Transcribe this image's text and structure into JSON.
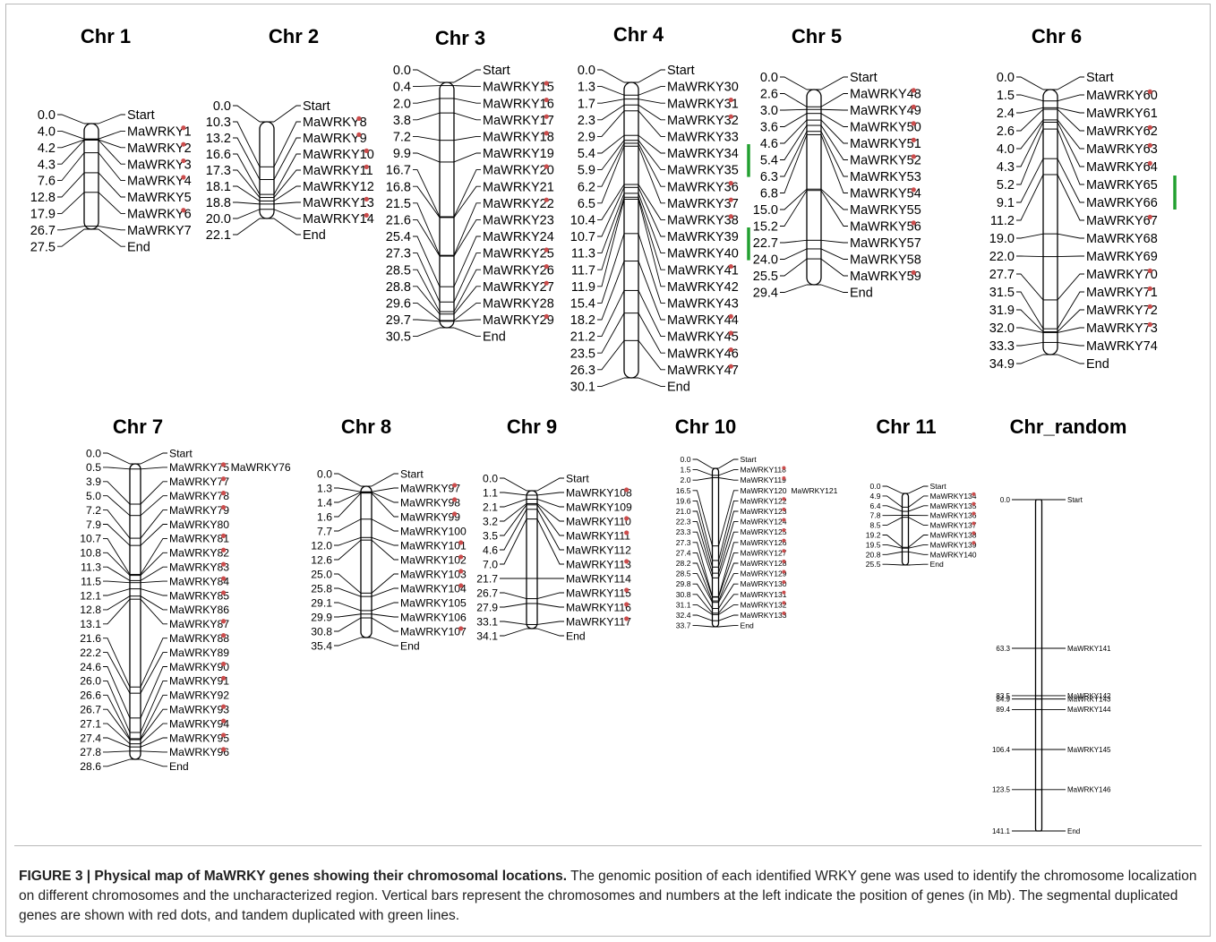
{
  "figure": {
    "caption_bold": "FIGURE 3 | Physical map of MaWRKY genes showing their chromosomal locations.",
    "caption_text": " The genomic position of each identified WRKY gene was used to identify the chromosome localization on different chromosomes and the uncharacterized region. Vertical bars represent the chromosomes and numbers at the left indicate the position of genes (in Mb). The segmental duplicated genes are shown with red dots, and tandem duplicated with green lines."
  },
  "colors": {
    "segmental_dot": "#cc4d4d",
    "tandem_line": "#22a030",
    "ink": "#000000"
  },
  "chromosomes": [
    {
      "name": "Chr 1",
      "markers": [
        {
          "pos": "0.0",
          "gene": "Start"
        },
        {
          "pos": "4.0",
          "gene": "MaWRKY1",
          "dot": true
        },
        {
          "pos": "4.2",
          "gene": "MaWRKY2",
          "dot": true
        },
        {
          "pos": "4.3",
          "gene": "MaWRKY3",
          "dot": true
        },
        {
          "pos": "7.6",
          "gene": "MaWRKY4",
          "dot": true
        },
        {
          "pos": "12.8",
          "gene": "MaWRKY5"
        },
        {
          "pos": "17.9",
          "gene": "MaWRKY6",
          "dot": true
        },
        {
          "pos": "26.7",
          "gene": "MaWRKY7"
        },
        {
          "pos": "27.5",
          "gene": "End"
        }
      ]
    },
    {
      "name": "Chr 2",
      "markers": [
        {
          "pos": "0.0",
          "gene": "Start"
        },
        {
          "pos": "10.3",
          "gene": "MaWRKY8",
          "dot": true
        },
        {
          "pos": "13.2",
          "gene": "MaWRKY9",
          "dot": true
        },
        {
          "pos": "16.6",
          "gene": "MaWRKY10",
          "dot": true
        },
        {
          "pos": "17.3",
          "gene": "MaWRKY11",
          "dot": true
        },
        {
          "pos": "18.1",
          "gene": "MaWRKY12"
        },
        {
          "pos": "18.8",
          "gene": "MaWRKY13",
          "dot": true
        },
        {
          "pos": "20.0",
          "gene": "MaWRKY14",
          "dot": true
        },
        {
          "pos": "22.1",
          "gene": "End"
        }
      ]
    },
    {
      "name": "Chr 3",
      "markers": [
        {
          "pos": "0.0",
          "gene": "Start"
        },
        {
          "pos": "0.4",
          "gene": "MaWRKY15",
          "dot": true
        },
        {
          "pos": "2.0",
          "gene": "MaWRKY16",
          "dot": true
        },
        {
          "pos": "3.8",
          "gene": "MaWRKY17",
          "dot": true
        },
        {
          "pos": "7.2",
          "gene": "MaWRKY18",
          "dot": true
        },
        {
          "pos": "9.9",
          "gene": "MaWRKY19"
        },
        {
          "pos": "16.7",
          "gene": "MaWRKY20",
          "dot": true
        },
        {
          "pos": "16.8",
          "gene": "MaWRKY21"
        },
        {
          "pos": "21.5",
          "gene": "MaWRKY22",
          "dot": true
        },
        {
          "pos": "21.6",
          "gene": "MaWRKY23"
        },
        {
          "pos": "25.4",
          "gene": "MaWRKY24"
        },
        {
          "pos": "27.3",
          "gene": "MaWRKY25",
          "dot": true
        },
        {
          "pos": "28.5",
          "gene": "MaWRKY26",
          "dot": true
        },
        {
          "pos": "28.8",
          "gene": "MaWRKY27",
          "dot": true
        },
        {
          "pos": "29.6",
          "gene": "MaWRKY28"
        },
        {
          "pos": "29.7",
          "gene": "MaWRKY29",
          "dot": true
        },
        {
          "pos": "30.5",
          "gene": "End"
        }
      ]
    },
    {
      "name": "Chr 4",
      "markers": [
        {
          "pos": "0.0",
          "gene": "Start"
        },
        {
          "pos": "1.3",
          "gene": "MaWRKY30"
        },
        {
          "pos": "1.7",
          "gene": "MaWRKY31",
          "dot": true
        },
        {
          "pos": "2.3",
          "gene": "MaWRKY32",
          "dot": true
        },
        {
          "pos": "2.9",
          "gene": "MaWRKY33"
        },
        {
          "pos": "5.4",
          "gene": "MaWRKY34"
        },
        {
          "pos": "5.9",
          "gene": "MaWRKY35"
        },
        {
          "pos": "6.2",
          "gene": "MaWRKY36",
          "dot": true
        },
        {
          "pos": "6.5",
          "gene": "MaWRKY37",
          "dot": true
        },
        {
          "pos": "10.4",
          "gene": "MaWRKY38",
          "dot": true
        },
        {
          "pos": "10.7",
          "gene": "MaWRKY39"
        },
        {
          "pos": "11.3",
          "gene": "MaWRKY40"
        },
        {
          "pos": "11.7",
          "gene": "MaWRKY41",
          "dot": true
        },
        {
          "pos": "11.9",
          "gene": "MaWRKY42"
        },
        {
          "pos": "15.4",
          "gene": "MaWRKY43"
        },
        {
          "pos": "18.2",
          "gene": "MaWRKY44",
          "dot": true
        },
        {
          "pos": "21.2",
          "gene": "MaWRKY45",
          "dot": true
        },
        {
          "pos": "23.5",
          "gene": "MaWRKY46",
          "dot": true
        },
        {
          "pos": "26.3",
          "gene": "MaWRKY47",
          "dot": true
        },
        {
          "pos": "30.1",
          "gene": "End"
        }
      ]
    },
    {
      "name": "Chr 5",
      "markers": [
        {
          "pos": "0.0",
          "gene": "Start"
        },
        {
          "pos": "2.6",
          "gene": "MaWRKY48",
          "dot": true
        },
        {
          "pos": "3.0",
          "gene": "MaWRKY49",
          "dot": true
        },
        {
          "pos": "3.6",
          "gene": "MaWRKY50",
          "dot": true
        },
        {
          "pos": "4.6",
          "gene": "MaWRKY51",
          "dot": true
        },
        {
          "pos": "5.4",
          "gene": "MaWRKY52",
          "dot": true
        },
        {
          "pos": "6.3",
          "gene": "MaWRKY53"
        },
        {
          "pos": "6.8",
          "gene": "MaWRKY54",
          "dot": true
        },
        {
          "pos": "15.0",
          "gene": "MaWRKY55"
        },
        {
          "pos": "15.2",
          "gene": "MaWRKY56",
          "dot": true
        },
        {
          "pos": "22.7",
          "gene": "MaWRKY57"
        },
        {
          "pos": "24.0",
          "gene": "MaWRKY58"
        },
        {
          "pos": "25.5",
          "gene": "MaWRKY59",
          "dot": true
        },
        {
          "pos": "29.4",
          "gene": "End"
        }
      ]
    },
    {
      "name": "Chr 6",
      "markers": [
        {
          "pos": "0.0",
          "gene": "Start"
        },
        {
          "pos": "1.5",
          "gene": "MaWRKY60",
          "dot": true
        },
        {
          "pos": "2.4",
          "gene": "MaWRKY61"
        },
        {
          "pos": "2.6",
          "gene": "MaWRKY62",
          "dot": true
        },
        {
          "pos": "4.0",
          "gene": "MaWRKY63",
          "dot": true
        },
        {
          "pos": "4.3",
          "gene": "MaWRKY64",
          "dot": true
        },
        {
          "pos": "5.2",
          "gene": "MaWRKY65"
        },
        {
          "pos": "9.1",
          "gene": "MaWRKY66"
        },
        {
          "pos": "11.2",
          "gene": "MaWRKY67",
          "dot": true
        },
        {
          "pos": "19.0",
          "gene": "MaWRKY68"
        },
        {
          "pos": "22.0",
          "gene": "MaWRKY69"
        },
        {
          "pos": "27.7",
          "gene": "MaWRKY70",
          "dot": true
        },
        {
          "pos": "31.5",
          "gene": "MaWRKY71",
          "dot": true
        },
        {
          "pos": "31.9",
          "gene": "MaWRKY72",
          "dot": true
        },
        {
          "pos": "32.0",
          "gene": "MaWRKY73",
          "dot": true
        },
        {
          "pos": "33.3",
          "gene": "MaWRKY74"
        },
        {
          "pos": "34.9",
          "gene": "End"
        }
      ]
    },
    {
      "name": "Chr 7",
      "extra": {
        "gene": "MaWRKY76",
        "row": 1
      },
      "markers": [
        {
          "pos": "0.0",
          "gene": "Start"
        },
        {
          "pos": "0.5",
          "gene": "MaWRKY75",
          "dot": true
        },
        {
          "pos": "3.9",
          "gene": "MaWRKY77",
          "dot": true
        },
        {
          "pos": "5.0",
          "gene": "MaWRKY78",
          "dot": true
        },
        {
          "pos": "7.2",
          "gene": "MaWRKY79",
          "dot": true
        },
        {
          "pos": "7.9",
          "gene": "MaWRKY80"
        },
        {
          "pos": "10.7",
          "gene": "MaWRKY81",
          "dot": true
        },
        {
          "pos": "10.8",
          "gene": "MaWRKY82",
          "dot": true
        },
        {
          "pos": "11.3",
          "gene": "MaWRKY83",
          "dot": true
        },
        {
          "pos": "11.5",
          "gene": "MaWRKY84",
          "dot": true
        },
        {
          "pos": "12.1",
          "gene": "MaWRKY85",
          "dot": true
        },
        {
          "pos": "12.8",
          "gene": "MaWRKY86"
        },
        {
          "pos": "13.1",
          "gene": "MaWRKY87",
          "dot": true
        },
        {
          "pos": "21.6",
          "gene": "MaWRKY88",
          "dot": true
        },
        {
          "pos": "22.2",
          "gene": "MaWRKY89"
        },
        {
          "pos": "24.6",
          "gene": "MaWRKY90",
          "dot": true
        },
        {
          "pos": "26.0",
          "gene": "MaWRKY91",
          "dot": true
        },
        {
          "pos": "26.6",
          "gene": "MaWRKY92"
        },
        {
          "pos": "26.7",
          "gene": "MaWRKY93",
          "dot": true
        },
        {
          "pos": "27.1",
          "gene": "MaWRKY94",
          "dot": true
        },
        {
          "pos": "27.4",
          "gene": "MaWRKY95",
          "dot": true
        },
        {
          "pos": "27.8",
          "gene": "MaWRKY96",
          "dot": true
        },
        {
          "pos": "28.6",
          "gene": "End"
        }
      ]
    },
    {
      "name": "Chr 8",
      "markers": [
        {
          "pos": "0.0",
          "gene": "Start"
        },
        {
          "pos": "1.3",
          "gene": "MaWRKY97",
          "dot": true
        },
        {
          "pos": "1.4",
          "gene": "MaWRKY98",
          "dot": true
        },
        {
          "pos": "1.6",
          "gene": "MaWRKY99",
          "dot": true
        },
        {
          "pos": "7.7",
          "gene": "MaWRKY100"
        },
        {
          "pos": "12.0",
          "gene": "MaWRKY101",
          "dot": true
        },
        {
          "pos": "12.6",
          "gene": "MaWRKY102",
          "dot": true
        },
        {
          "pos": "25.0",
          "gene": "MaWRKY103",
          "dot": true
        },
        {
          "pos": "25.8",
          "gene": "MaWRKY104",
          "dot": true
        },
        {
          "pos": "29.1",
          "gene": "MaWRKY105"
        },
        {
          "pos": "29.9",
          "gene": "MaWRKY106"
        },
        {
          "pos": "30.8",
          "gene": "MaWRKY107",
          "dot": true
        },
        {
          "pos": "35.4",
          "gene": "End"
        }
      ]
    },
    {
      "name": "Chr 9",
      "markers": [
        {
          "pos": "0.0",
          "gene": "Start"
        },
        {
          "pos": "1.1",
          "gene": "MaWRKY108",
          "dot": true
        },
        {
          "pos": "2.1",
          "gene": "MaWRKY109"
        },
        {
          "pos": "3.2",
          "gene": "MaWRKY110",
          "dot": true
        },
        {
          "pos": "3.5",
          "gene": "MaWRKY111",
          "dot": true
        },
        {
          "pos": "4.6",
          "gene": "MaWRKY112"
        },
        {
          "pos": "7.0",
          "gene": "MaWRKY113",
          "dot": true
        },
        {
          "pos": "21.7",
          "gene": "MaWRKY114"
        },
        {
          "pos": "26.7",
          "gene": "MaWRKY115",
          "dot": true
        },
        {
          "pos": "27.9",
          "gene": "MaWRKY116",
          "dot": true
        },
        {
          "pos": "33.1",
          "gene": "MaWRKY117",
          "dot": true
        },
        {
          "pos": "34.1",
          "gene": "End"
        }
      ]
    },
    {
      "name": "Chr 10",
      "extra": {
        "gene": "MaWRKY121",
        "row": 3
      },
      "markers": [
        {
          "pos": "0.0",
          "gene": "Start"
        },
        {
          "pos": "1.5",
          "gene": "MaWRKY118",
          "dot": true
        },
        {
          "pos": "2.0",
          "gene": "MaWRKY119",
          "dot": true
        },
        {
          "pos": "16.5",
          "gene": "MaWRKY120"
        },
        {
          "pos": "19.6",
          "gene": "MaWRKY122",
          "dot": true
        },
        {
          "pos": "21.0",
          "gene": "MaWRKY123",
          "dot": true
        },
        {
          "pos": "22.3",
          "gene": "MaWRKY124",
          "dot": true
        },
        {
          "pos": "23.3",
          "gene": "MaWRKY125",
          "dot": true
        },
        {
          "pos": "27.3",
          "gene": "MaWRKY126",
          "dot": true
        },
        {
          "pos": "27.4",
          "gene": "MaWRKY127",
          "dot": true
        },
        {
          "pos": "28.2",
          "gene": "MaWRKY128",
          "dot": true
        },
        {
          "pos": "28.5",
          "gene": "MaWRKY129",
          "dot": true
        },
        {
          "pos": "29.8",
          "gene": "MaWRKY130",
          "dot": true
        },
        {
          "pos": "30.8",
          "gene": "MaWRKY131",
          "dot": true
        },
        {
          "pos": "31.1",
          "gene": "MaWRKY132",
          "dot": true
        },
        {
          "pos": "32.4",
          "gene": "MaWRKY133",
          "dot": true
        },
        {
          "pos": "33.7",
          "gene": "End"
        }
      ]
    },
    {
      "name": "Chr 11",
      "markers": [
        {
          "pos": "0.0",
          "gene": "Start"
        },
        {
          "pos": "4.9",
          "gene": "MaWRKY134",
          "dot": true
        },
        {
          "pos": "6.4",
          "gene": "MaWRKY135",
          "dot": true
        },
        {
          "pos": "7.8",
          "gene": "MaWRKY136",
          "dot": true
        },
        {
          "pos": "8.5",
          "gene": "MaWRKY137",
          "dot": true
        },
        {
          "pos": "19.2",
          "gene": "MaWRKY138",
          "dot": true
        },
        {
          "pos": "19.5",
          "gene": "MaWRKY139",
          "dot": true
        },
        {
          "pos": "20.8",
          "gene": "MaWRKY140"
        },
        {
          "pos": "25.5",
          "gene": "End"
        }
      ]
    },
    {
      "name": "Chr_random",
      "markers": [
        {
          "pos": "0.0",
          "gene": "Start"
        },
        {
          "pos": "63.3",
          "gene": "MaWRKY141"
        },
        {
          "pos": "83.5",
          "gene": "MaWRKY142"
        },
        {
          "pos": "84.9",
          "gene": "MaWRKY143"
        },
        {
          "pos": "89.4",
          "gene": "MaWRKY144"
        },
        {
          "pos": "106.4",
          "gene": "MaWRKY145"
        },
        {
          "pos": "123.5",
          "gene": "MaWRKY146"
        },
        {
          "pos": "141.1",
          "gene": "End"
        }
      ]
    }
  ]
}
